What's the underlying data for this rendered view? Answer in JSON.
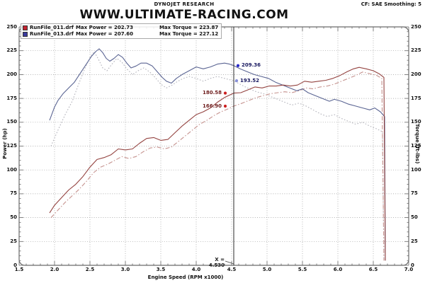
{
  "header": {
    "brand": "DYNOJET RESEARCH",
    "settings": "CF: SAE  Smoothing: 5",
    "title": "WWW.ULTIMATE-RACING.COM"
  },
  "legend": {
    "rows": [
      {
        "file": "RunFile_011.drf",
        "max_power": "Max Power = 202.73",
        "max_torque": "Max Torque = 223.87",
        "color": "#c22430"
      },
      {
        "file": "RunFile_013.drf",
        "max_power": "Max Power = 207.60",
        "max_torque": "Max Torque = 227.12",
        "color": "#3a3a9e"
      }
    ]
  },
  "chart_data": {
    "type": "line",
    "title": "WWW.ULTIMATE-RACING.COM",
    "xlabel": "Engine Speed (RPM x1000)",
    "ylabel_left": "Power (hp)",
    "ylabel_right": "Torque (ft-lbs)",
    "xlim": [
      1.5,
      7.0
    ],
    "ylim": [
      0,
      250
    ],
    "grid": true,
    "x_ticks": [
      "1.5",
      "2.0",
      "2.5",
      "3.0",
      "3.5",
      "4.0",
      "4.5",
      "5.0",
      "5.5",
      "6.0",
      "6.5",
      "7.0"
    ],
    "y_ticks": [
      "0",
      "25",
      "50",
      "75",
      "100",
      "125",
      "150",
      "175",
      "200",
      "225",
      "250"
    ],
    "cursor": {
      "rpm": 4.53,
      "label": "X = 4.530"
    },
    "callouts": [
      {
        "label": "209.36",
        "value": 209.36,
        "dot_rpm": 4.59,
        "side": "right",
        "dot_color": "#2828c8",
        "text_color": "#16165e"
      },
      {
        "label": "193.52",
        "value": 193.52,
        "dot_rpm": 4.57,
        "side": "right",
        "dot_color": "#8890d8",
        "text_color": "#16165e"
      },
      {
        "label": "180.58",
        "value": 180.58,
        "dot_rpm": 4.41,
        "side": "left",
        "dot_color": "#cc2020",
        "text_color": "#6e1d1d"
      },
      {
        "label": "166.90",
        "value": 166.9,
        "dot_rpm": 4.41,
        "side": "left",
        "dot_color": "#cc2020",
        "text_color": "#6e1d1d"
      }
    ],
    "series": [
      {
        "name": "Torque RunFile_011",
        "axis": "torque",
        "color": "#b3b3bb",
        "dash": "dotted",
        "points": [
          [
            1.95,
            125
          ],
          [
            2.05,
            142
          ],
          [
            2.15,
            158
          ],
          [
            2.25,
            172
          ],
          [
            2.33,
            188
          ],
          [
            2.42,
            205
          ],
          [
            2.5,
            218
          ],
          [
            2.56,
            224
          ],
          [
            2.62,
            216
          ],
          [
            2.68,
            207
          ],
          [
            2.74,
            204
          ],
          [
            2.8,
            210
          ],
          [
            2.88,
            217
          ],
          [
            2.95,
            213
          ],
          [
            3.02,
            206
          ],
          [
            3.1,
            200
          ],
          [
            3.18,
            204
          ],
          [
            3.26,
            207
          ],
          [
            3.34,
            203
          ],
          [
            3.42,
            197
          ],
          [
            3.5,
            190
          ],
          [
            3.58,
            186
          ],
          [
            3.66,
            189
          ],
          [
            3.74,
            193
          ],
          [
            3.82,
            196
          ],
          [
            3.9,
            198
          ],
          [
            4.0,
            196
          ],
          [
            4.1,
            193
          ],
          [
            4.2,
            196
          ],
          [
            4.3,
            198
          ],
          [
            4.4,
            196
          ],
          [
            4.53,
            193.5
          ],
          [
            4.64,
            189
          ],
          [
            4.75,
            185
          ],
          [
            4.85,
            182
          ],
          [
            4.95,
            180
          ],
          [
            5.05,
            177
          ],
          [
            5.15,
            174
          ],
          [
            5.25,
            171
          ],
          [
            5.35,
            168
          ],
          [
            5.45,
            170
          ],
          [
            5.55,
            167
          ],
          [
            5.65,
            163
          ],
          [
            5.75,
            159
          ],
          [
            5.85,
            156
          ],
          [
            5.95,
            158
          ],
          [
            6.05,
            154
          ],
          [
            6.15,
            151
          ],
          [
            6.25,
            148
          ],
          [
            6.35,
            150
          ],
          [
            6.45,
            146
          ],
          [
            6.55,
            143
          ],
          [
            6.63,
            140
          ],
          [
            6.65,
            5
          ]
        ]
      },
      {
        "name": "Power RunFile_011",
        "axis": "power",
        "color": "#c5928e",
        "dash": "dashdot",
        "points": [
          [
            1.95,
            50
          ],
          [
            2.05,
            58
          ],
          [
            2.15,
            66
          ],
          [
            2.25,
            73
          ],
          [
            2.35,
            80
          ],
          [
            2.45,
            88
          ],
          [
            2.55,
            97
          ],
          [
            2.65,
            103
          ],
          [
            2.75,
            106
          ],
          [
            2.85,
            110
          ],
          [
            2.95,
            114
          ],
          [
            3.05,
            112
          ],
          [
            3.15,
            114
          ],
          [
            3.25,
            119
          ],
          [
            3.35,
            123
          ],
          [
            3.45,
            124
          ],
          [
            3.55,
            122
          ],
          [
            3.65,
            124
          ],
          [
            3.75,
            130
          ],
          [
            3.85,
            136
          ],
          [
            3.95,
            142
          ],
          [
            4.05,
            148
          ],
          [
            4.15,
            152
          ],
          [
            4.25,
            157
          ],
          [
            4.35,
            161
          ],
          [
            4.45,
            164
          ],
          [
            4.53,
            166.9
          ],
          [
            4.65,
            170
          ],
          [
            4.75,
            173
          ],
          [
            4.85,
            176
          ],
          [
            4.95,
            178
          ],
          [
            5.05,
            180
          ],
          [
            5.15,
            181
          ],
          [
            5.25,
            182
          ],
          [
            5.35,
            181
          ],
          [
            5.45,
            183
          ],
          [
            5.55,
            186
          ],
          [
            5.65,
            185
          ],
          [
            5.75,
            187
          ],
          [
            5.85,
            188
          ],
          [
            5.95,
            190
          ],
          [
            6.05,
            193
          ],
          [
            6.15,
            196
          ],
          [
            6.25,
            199
          ],
          [
            6.35,
            202.7
          ],
          [
            6.45,
            201
          ],
          [
            6.55,
            199
          ],
          [
            6.62,
            196
          ],
          [
            6.65,
            5
          ]
        ]
      },
      {
        "name": "Torque RunFile_013",
        "axis": "torque",
        "color": "#5b6593",
        "dash": "solid",
        "points": [
          [
            1.93,
            152
          ],
          [
            2.0,
            166
          ],
          [
            2.05,
            173
          ],
          [
            2.12,
            180
          ],
          [
            2.2,
            186
          ],
          [
            2.28,
            192
          ],
          [
            2.36,
            201
          ],
          [
            2.44,
            210
          ],
          [
            2.52,
            219
          ],
          [
            2.58,
            224
          ],
          [
            2.63,
            227
          ],
          [
            2.68,
            223
          ],
          [
            2.73,
            217
          ],
          [
            2.78,
            214
          ],
          [
            2.84,
            217
          ],
          [
            2.9,
            221
          ],
          [
            2.96,
            218
          ],
          [
            3.02,
            212
          ],
          [
            3.08,
            207
          ],
          [
            3.15,
            209
          ],
          [
            3.22,
            212
          ],
          [
            3.3,
            212
          ],
          [
            3.38,
            209
          ],
          [
            3.45,
            203
          ],
          [
            3.52,
            197
          ],
          [
            3.58,
            193
          ],
          [
            3.65,
            191
          ],
          [
            3.72,
            196
          ],
          [
            3.8,
            200
          ],
          [
            3.9,
            204
          ],
          [
            4.0,
            208
          ],
          [
            4.1,
            206
          ],
          [
            4.2,
            208
          ],
          [
            4.3,
            211
          ],
          [
            4.4,
            212
          ],
          [
            4.47,
            211
          ],
          [
            4.53,
            209.4
          ],
          [
            4.62,
            206
          ],
          [
            4.72,
            203
          ],
          [
            4.82,
            200
          ],
          [
            4.92,
            198
          ],
          [
            5.02,
            196
          ],
          [
            5.12,
            192
          ],
          [
            5.22,
            189
          ],
          [
            5.32,
            186
          ],
          [
            5.42,
            183
          ],
          [
            5.5,
            185
          ],
          [
            5.58,
            181
          ],
          [
            5.68,
            178
          ],
          [
            5.78,
            175
          ],
          [
            5.88,
            172
          ],
          [
            5.95,
            174
          ],
          [
            6.05,
            172
          ],
          [
            6.15,
            169
          ],
          [
            6.25,
            167
          ],
          [
            6.35,
            165
          ],
          [
            6.45,
            163
          ],
          [
            6.52,
            165
          ],
          [
            6.6,
            161
          ],
          [
            6.66,
            156
          ],
          [
            6.67,
            5
          ]
        ]
      },
      {
        "name": "Power RunFile_013",
        "axis": "power",
        "color": "#944340",
        "dash": "solid",
        "points": [
          [
            1.93,
            55
          ],
          [
            2.0,
            63
          ],
          [
            2.1,
            71
          ],
          [
            2.2,
            79
          ],
          [
            2.3,
            85
          ],
          [
            2.4,
            93
          ],
          [
            2.5,
            103
          ],
          [
            2.6,
            111
          ],
          [
            2.7,
            113
          ],
          [
            2.8,
            116
          ],
          [
            2.9,
            122
          ],
          [
            3.0,
            121
          ],
          [
            3.1,
            122
          ],
          [
            3.2,
            128
          ],
          [
            3.3,
            133
          ],
          [
            3.4,
            134
          ],
          [
            3.5,
            131
          ],
          [
            3.6,
            132
          ],
          [
            3.7,
            139
          ],
          [
            3.8,
            146
          ],
          [
            3.9,
            152
          ],
          [
            4.0,
            158
          ],
          [
            4.1,
            161
          ],
          [
            4.2,
            165
          ],
          [
            4.3,
            171
          ],
          [
            4.4,
            176
          ],
          [
            4.53,
            180.6
          ],
          [
            4.63,
            181
          ],
          [
            4.73,
            184
          ],
          [
            4.83,
            187
          ],
          [
            4.93,
            186
          ],
          [
            5.03,
            188
          ],
          [
            5.13,
            188
          ],
          [
            5.23,
            189
          ],
          [
            5.33,
            188
          ],
          [
            5.43,
            189
          ],
          [
            5.53,
            193
          ],
          [
            5.63,
            192
          ],
          [
            5.73,
            193
          ],
          [
            5.83,
            194
          ],
          [
            5.93,
            196
          ],
          [
            6.03,
            199
          ],
          [
            6.13,
            203
          ],
          [
            6.22,
            206
          ],
          [
            6.3,
            207.6
          ],
          [
            6.4,
            206
          ],
          [
            6.5,
            204
          ],
          [
            6.58,
            201
          ],
          [
            6.65,
            197
          ],
          [
            6.67,
            5
          ]
        ]
      }
    ]
  }
}
